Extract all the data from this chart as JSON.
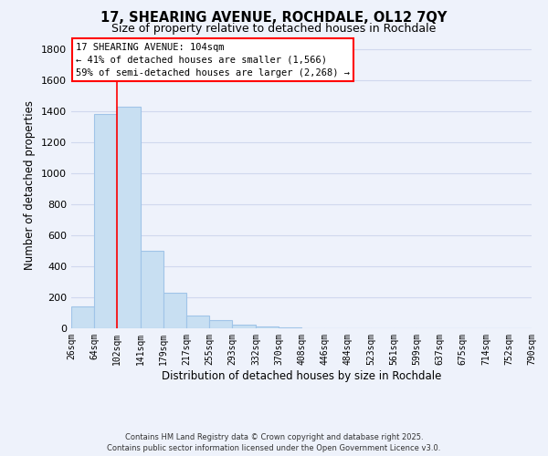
{
  "title": "17, SHEARING AVENUE, ROCHDALE, OL12 7QY",
  "subtitle": "Size of property relative to detached houses in Rochdale",
  "xlabel": "Distribution of detached houses by size in Rochdale",
  "ylabel": "Number of detached properties",
  "bar_color": "#c8dff2",
  "bar_edge_color": "#a0c4e8",
  "background_color": "#eef2fb",
  "grid_color": "#d0d8ee",
  "bin_edges": [
    26,
    64,
    102,
    141,
    179,
    217,
    255,
    293,
    332,
    370,
    408,
    446,
    484,
    523,
    561,
    599,
    637,
    675,
    714,
    752,
    790
  ],
  "bin_labels": [
    "26sqm",
    "64sqm",
    "102sqm",
    "141sqm",
    "179sqm",
    "217sqm",
    "255sqm",
    "293sqm",
    "332sqm",
    "370sqm",
    "408sqm",
    "446sqm",
    "484sqm",
    "523sqm",
    "561sqm",
    "599sqm",
    "637sqm",
    "675sqm",
    "714sqm",
    "752sqm",
    "790sqm"
  ],
  "bar_heights": [
    140,
    1380,
    1430,
    500,
    230,
    85,
    55,
    25,
    12,
    3,
    0,
    0,
    0,
    0,
    0,
    0,
    0,
    0,
    0,
    0
  ],
  "ylim": [
    0,
    1850
  ],
  "yticks": [
    0,
    200,
    400,
    600,
    800,
    1000,
    1200,
    1400,
    1600,
    1800
  ],
  "property_line_x": 102,
  "annotation_title": "17 SHEARING AVENUE: 104sqm",
  "annotation_line1": "← 41% of detached houses are smaller (1,566)",
  "annotation_line2": "59% of semi-detached houses are larger (2,268) →",
  "footer_line1": "Contains HM Land Registry data © Crown copyright and database right 2025.",
  "footer_line2": "Contains public sector information licensed under the Open Government Licence v3.0."
}
